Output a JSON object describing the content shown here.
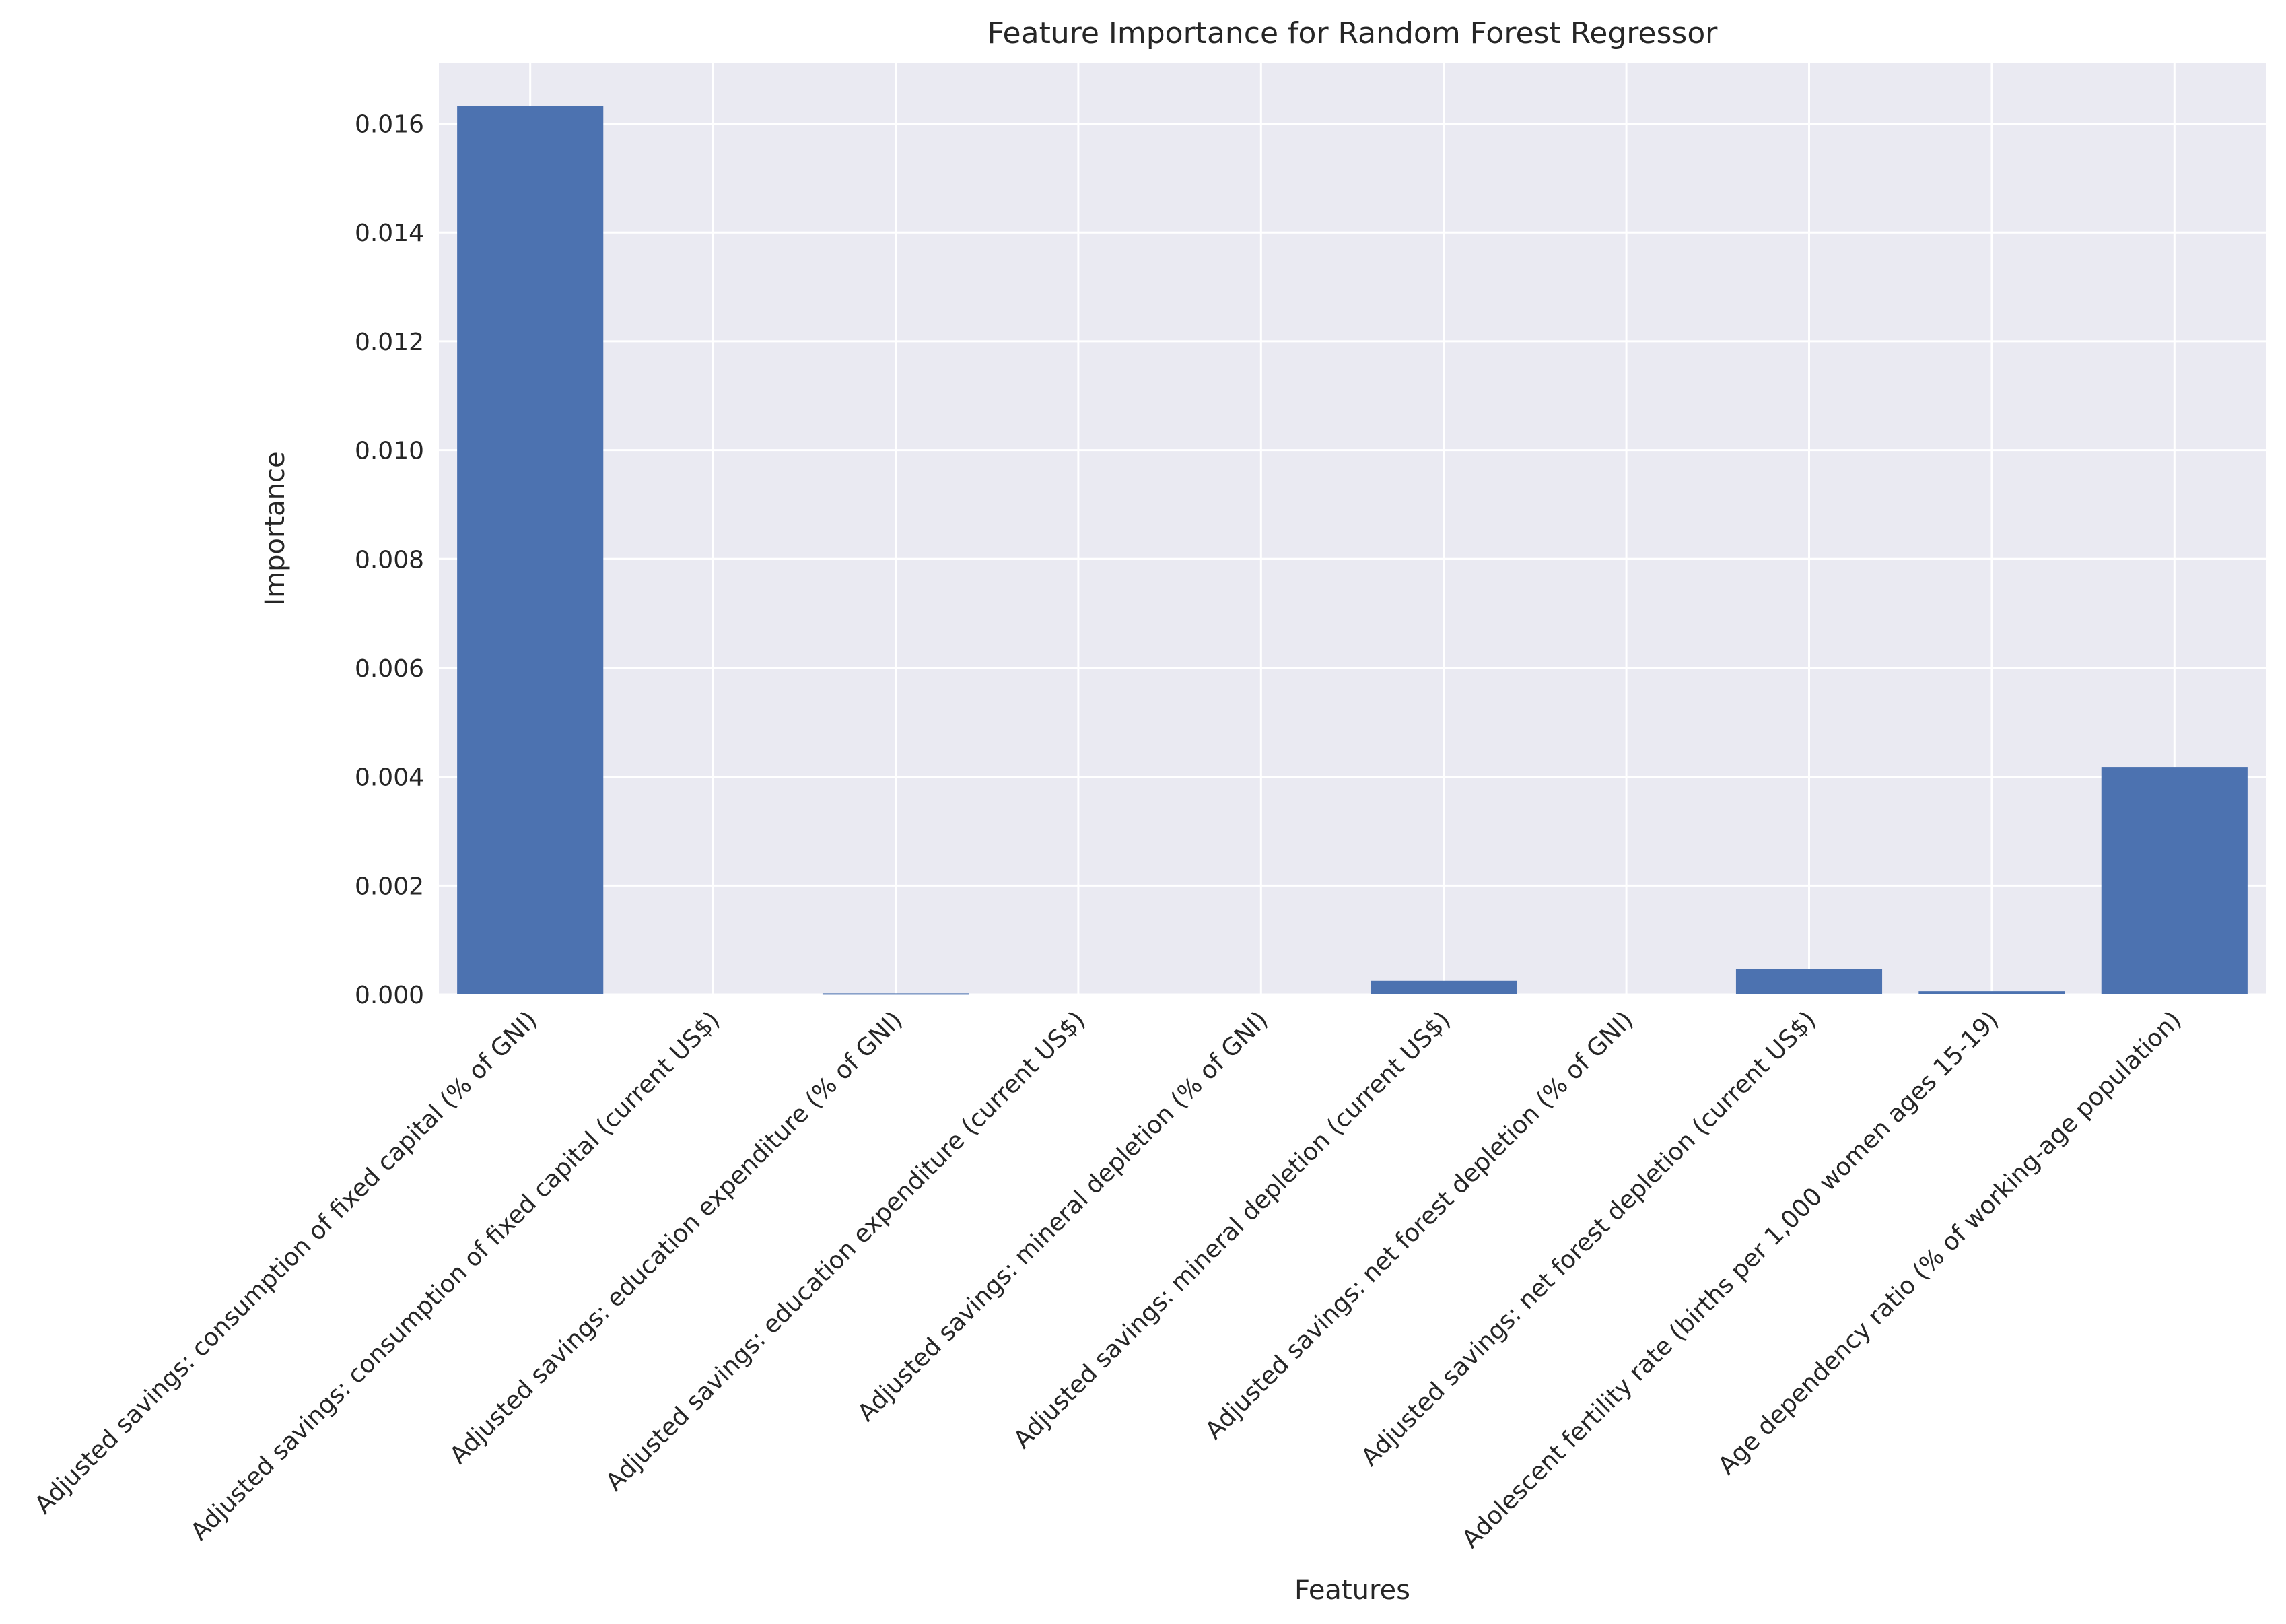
{
  "chart_data": {
    "type": "bar",
    "title": "Feature Importance for Random Forest Regressor",
    "xlabel": "Features",
    "ylabel": "Importance",
    "ylim": [
      0,
      0.01712
    ],
    "yticks": [
      "0.000",
      "0.002",
      "0.004",
      "0.006",
      "0.008",
      "0.010",
      "0.012",
      "0.014",
      "0.016"
    ],
    "grid": true,
    "categories": [
      "Adjusted savings: consumption of fixed capital (% of GNI)",
      "Adjusted savings: consumption of fixed capital (current US$)",
      "Adjusted savings: education expenditure (% of GNI)",
      "Adjusted savings: education expenditure (current US$)",
      "Adjusted savings: mineral depletion (% of GNI)",
      "Adjusted savings: mineral depletion (current US$)",
      "Adjusted savings: net forest depletion (% of GNI)",
      "Adjusted savings: net forest depletion (current US$)",
      "Adolescent fertility rate (births per 1,000 women ages 15-19)",
      "Age dependency ratio (% of working-age population)"
    ],
    "values": [
      0.01632,
      0.0,
      2e-05,
      0.0,
      0.0,
      0.00025,
      0.0,
      0.00047,
      6e-05,
      0.00418
    ],
    "colors": {
      "bar": "#4c72b0",
      "plot_bg": "#eaeaf2",
      "grid": "#ffffff"
    }
  }
}
